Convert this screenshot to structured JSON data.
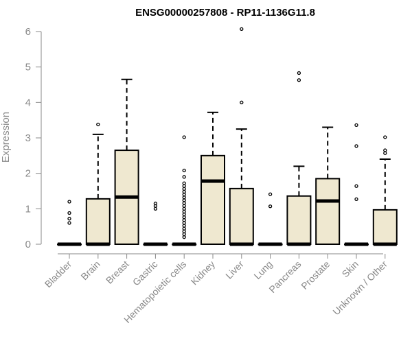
{
  "chart_data": {
    "type": "boxplot",
    "title": "ENSG00000257808 - RP11-1136G11.8",
    "ylabel": "Expression",
    "xlabel": "",
    "ylim": [
      0,
      6
    ],
    "yticks": [
      0,
      1,
      2,
      3,
      4,
      5,
      6
    ],
    "grid": false,
    "box_fill": "#efe8d0",
    "box_stroke": "#000000",
    "axis_color": "#888888",
    "categories": [
      "Bladder",
      "Brain",
      "Breast",
      "Gastric",
      "Hematopoietic cells",
      "Kidney",
      "Liver",
      "Lung",
      "Pancreas",
      "Prostate",
      "Skin",
      "Unknown / Other"
    ],
    "boxes": [
      {
        "category": "Bladder",
        "whisker_low": 0,
        "q1": 0,
        "median": 0,
        "q3": 0,
        "whisker_high": 0,
        "outliers": [
          0.6,
          0.72,
          0.88,
          1.2
        ]
      },
      {
        "category": "Brain",
        "whisker_low": 0,
        "q1": 0,
        "median": 0,
        "q3": 1.28,
        "whisker_high": 3.1,
        "outliers": [
          3.38
        ]
      },
      {
        "category": "Breast",
        "whisker_low": 0,
        "q1": 0,
        "median": 1.33,
        "q3": 2.65,
        "whisker_high": 4.65,
        "outliers": []
      },
      {
        "category": "Gastric",
        "whisker_low": 0,
        "q1": 0,
        "median": 0,
        "q3": 0,
        "whisker_high": 0,
        "outliers": [
          1.0,
          1.08,
          1.15
        ]
      },
      {
        "category": "Hematopoietic cells",
        "whisker_low": 0,
        "q1": 0,
        "median": 0,
        "q3": 0,
        "whisker_high": 0,
        "outliers": [
          0.2,
          0.28,
          0.36,
          0.44,
          0.52,
          0.6,
          0.68,
          0.76,
          0.84,
          0.92,
          1.0,
          1.08,
          1.16,
          1.24,
          1.32,
          1.4,
          1.48,
          1.56,
          1.64,
          1.72,
          1.9,
          2.08,
          3.02
        ]
      },
      {
        "category": "Kidney",
        "whisker_low": 0,
        "q1": 0,
        "median": 1.78,
        "q3": 2.5,
        "whisker_high": 3.72,
        "outliers": []
      },
      {
        "category": "Liver",
        "whisker_low": 0,
        "q1": 0,
        "median": 0,
        "q3": 1.57,
        "whisker_high": 3.25,
        "outliers": [
          4.0,
          6.07
        ]
      },
      {
        "category": "Lung",
        "whisker_low": 0,
        "q1": 0,
        "median": 0,
        "q3": 0,
        "whisker_high": 0,
        "outliers": [
          1.07,
          1.41
        ]
      },
      {
        "category": "Pancreas",
        "whisker_low": 0,
        "q1": 0,
        "median": 0,
        "q3": 1.36,
        "whisker_high": 2.2,
        "outliers": [
          4.63,
          4.83
        ]
      },
      {
        "category": "Prostate",
        "whisker_low": 0,
        "q1": 0,
        "median": 1.22,
        "q3": 1.85,
        "whisker_high": 3.3,
        "outliers": []
      },
      {
        "category": "Skin",
        "whisker_low": 0,
        "q1": 0,
        "median": 0,
        "q3": 0,
        "whisker_high": 0,
        "outliers": [
          1.27,
          1.64,
          2.77,
          3.36
        ]
      },
      {
        "category": "Unknown / Other",
        "whisker_low": 0,
        "q1": 0,
        "median": 0,
        "q3": 0.97,
        "whisker_high": 2.4,
        "outliers": [
          2.57,
          2.65,
          3.02
        ]
      }
    ]
  }
}
